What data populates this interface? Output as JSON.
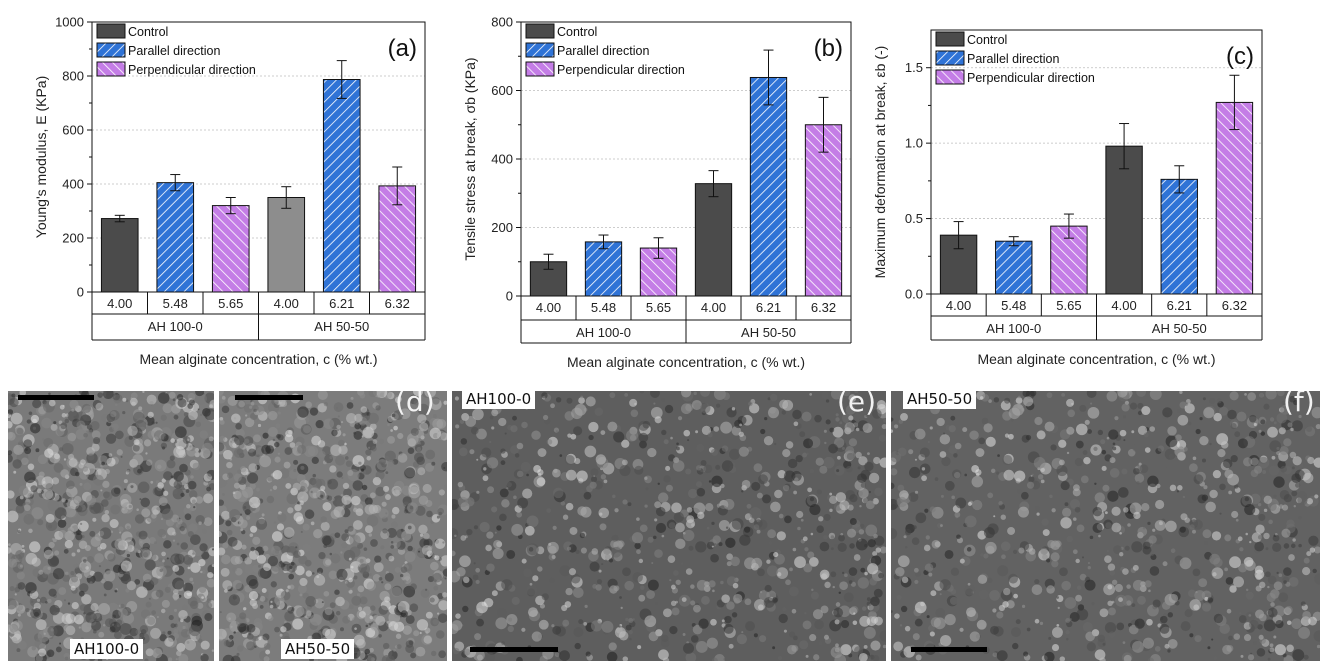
{
  "colors": {
    "control": "#4b4b4b",
    "control_light": "#8d8d8d",
    "parallel": "#2f73d6",
    "perpendicular": "#c47de6",
    "hatch": "#ffffff",
    "grid": "#bdbdbd"
  },
  "legend": [
    "Control",
    "Parallel direction",
    "Perpendicular direction"
  ],
  "chart_data": [
    {
      "type": "bar",
      "panel": "(a)",
      "ylabel": "Young's modulus, E (KPa)",
      "xlabel": "Mean alginate concentration, c (% wt.)",
      "ylim": [
        0,
        1000
      ],
      "yticks": [
        "0",
        "200",
        "400",
        "600",
        "800",
        "1000"
      ],
      "groups": [
        "AH 100-0",
        "AH 50-50"
      ],
      "categories": [
        "4.00",
        "5.48",
        "5.65",
        "4.00",
        "6.21",
        "6.32"
      ],
      "series_of_bar": [
        "Control",
        "Parallel direction",
        "Perpendicular direction",
        "Control",
        "Parallel direction",
        "Perpendicular direction"
      ],
      "values": [
        272,
        405,
        320,
        350,
        787,
        393
      ],
      "errors": [
        12,
        30,
        30,
        40,
        70,
        70
      ],
      "grid": "horizontal dotted"
    },
    {
      "type": "bar",
      "panel": "(b)",
      "ylabel": "Tensile stress at break, σb (KPa)",
      "xlabel": "Mean alginate concentration, c (% wt.)",
      "ylim": [
        0,
        800
      ],
      "yticks": [
        "0",
        "200",
        "400",
        "600",
        "800"
      ],
      "groups": [
        "AH 100-0",
        "AH 50-50"
      ],
      "categories": [
        "4.00",
        "5.48",
        "5.65",
        "4.00",
        "6.21",
        "6.32"
      ],
      "series_of_bar": [
        "Control",
        "Parallel direction",
        "Perpendicular direction",
        "Control",
        "Parallel direction",
        "Perpendicular direction"
      ],
      "values": [
        100,
        158,
        140,
        328,
        638,
        500
      ],
      "errors": [
        22,
        20,
        30,
        38,
        80,
        80
      ],
      "grid": "horizontal dotted"
    },
    {
      "type": "bar",
      "panel": "(c)",
      "ylabel": "Maximum deformation at break, εb (-)",
      "xlabel": "Mean alginate concentration, c (% wt.)",
      "ylim": [
        0,
        1.75
      ],
      "yticks": [
        "0.0",
        "0.5",
        "1.0",
        "1.5"
      ],
      "groups": [
        "AH 100-0",
        "AH 50-50"
      ],
      "categories": [
        "4.00",
        "5.48",
        "5.65",
        "4.00",
        "6.21",
        "6.32"
      ],
      "series_of_bar": [
        "Control",
        "Parallel direction",
        "Perpendicular direction",
        "Control",
        "Parallel direction",
        "Perpendicular direction"
      ],
      "values": [
        0.39,
        0.35,
        0.45,
        0.98,
        0.76,
        1.27
      ],
      "errors": [
        0.09,
        0.03,
        0.08,
        0.15,
        0.09,
        0.18
      ],
      "grid": "horizontal dotted"
    }
  ],
  "sem": {
    "d_left": {
      "tag": "AH100-0"
    },
    "d_right": {
      "tag": "AH50-50",
      "panel": "(d)"
    },
    "e": {
      "tag": "AH100-0",
      "panel": "(e)"
    },
    "f": {
      "tag": "AH50-50",
      "panel": "(f)"
    }
  }
}
